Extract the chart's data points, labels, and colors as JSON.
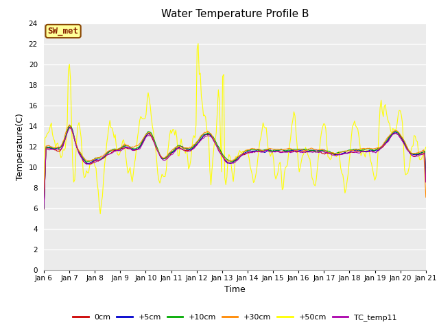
{
  "title": "Water Temperature Profile B",
  "xlabel": "Time",
  "ylabel": "Temperature(C)",
  "ylim": [
    0,
    24
  ],
  "yticks": [
    0,
    2,
    4,
    6,
    8,
    10,
    12,
    14,
    16,
    18,
    20,
    22,
    24
  ],
  "x_labels": [
    "Jan 6",
    "Jan 7",
    "Jan 8",
    "Jan 9",
    "Jan 10",
    "Jan 11",
    "Jan 12",
    "Jan 13",
    "Jan 14",
    "Jan 15",
    "Jan 16",
    "Jan 17",
    "Jan 18",
    "Jan 19",
    "Jan 20",
    "Jan 21"
  ],
  "background_color": "#ebebeb",
  "figure_bg": "#ffffff",
  "series_colors": {
    "0cm": "#cc0000",
    "+5cm": "#0000cc",
    "+10cm": "#00aa00",
    "+30cm": "#ff8800",
    "+50cm": "#ffff00",
    "TC_temp11": "#aa00aa"
  },
  "annotation_text": "SW_met",
  "annotation_bg": "#ffff99",
  "annotation_border": "#884400",
  "annotation_text_color": "#882200"
}
